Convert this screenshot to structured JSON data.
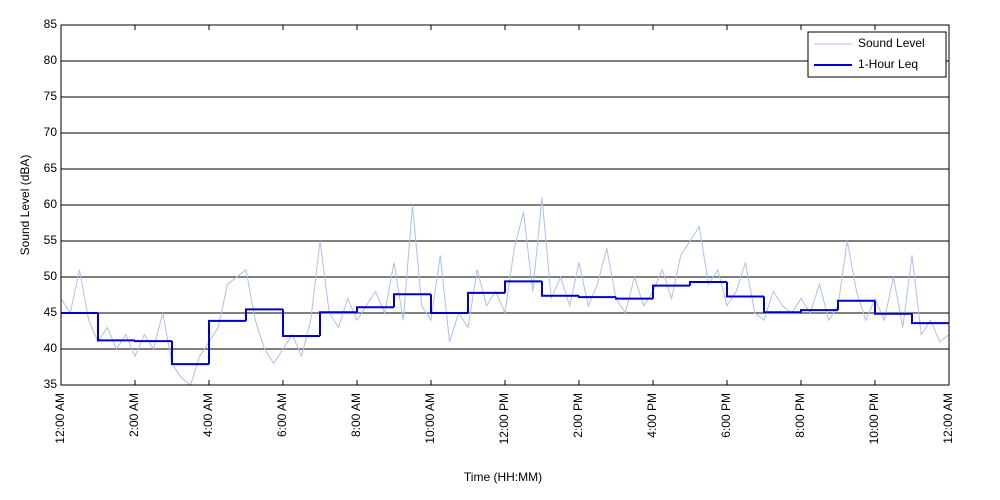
{
  "chart_data": {
    "type": "line",
    "x_label": "Time (HH:MM)",
    "y_label": "Sound Level (dBA)",
    "xlim": [
      0,
      24
    ],
    "ylim": [
      35,
      85
    ],
    "yticks": [
      35,
      40,
      45,
      50,
      55,
      60,
      65,
      70,
      75,
      80,
      85
    ],
    "xticks": [
      {
        "value": 0,
        "label": "12:00 AM"
      },
      {
        "value": 2,
        "label": "2:00 AM"
      },
      {
        "value": 4,
        "label": "4:00 AM"
      },
      {
        "value": 6,
        "label": "6:00 AM"
      },
      {
        "value": 8,
        "label": "8:00 AM"
      },
      {
        "value": 10,
        "label": "10:00 AM"
      },
      {
        "value": 12,
        "label": "12:00 PM"
      },
      {
        "value": 14,
        "label": "2:00 PM"
      },
      {
        "value": 16,
        "label": "4:00 PM"
      },
      {
        "value": 18,
        "label": "6:00 PM"
      },
      {
        "value": 20,
        "label": "8:00 PM"
      },
      {
        "value": 22,
        "label": "10:00 PM"
      },
      {
        "value": 24,
        "label": "12:00 AM"
      }
    ],
    "grid": true,
    "legend": "upper right",
    "series": [
      {
        "name": "Sound Level",
        "color": "#a9c1ef",
        "style": "line",
        "x": [
          0,
          0.25,
          0.5,
          0.75,
          1,
          1.25,
          1.5,
          1.75,
          2,
          2.25,
          2.5,
          2.75,
          3,
          3.25,
          3.5,
          3.75,
          4,
          4.25,
          4.5,
          4.75,
          5,
          5.25,
          5.5,
          5.75,
          6,
          6.25,
          6.5,
          6.75,
          7,
          7.25,
          7.5,
          7.75,
          8,
          8.25,
          8.5,
          8.75,
          9,
          9.25,
          9.5,
          9.75,
          10,
          10.25,
          10.5,
          10.75,
          11,
          11.25,
          11.5,
          11.75,
          12,
          12.25,
          12.5,
          12.75,
          13,
          13.25,
          13.5,
          13.75,
          14,
          14.25,
          14.5,
          14.75,
          15,
          15.25,
          15.5,
          15.75,
          16,
          16.25,
          16.5,
          16.75,
          17,
          17.25,
          17.5,
          17.75,
          18,
          18.25,
          18.5,
          18.75,
          19,
          19.25,
          19.5,
          19.75,
          20,
          20.25,
          20.5,
          20.75,
          21,
          21.25,
          21.5,
          21.75,
          22,
          22.25,
          22.5,
          22.75,
          23,
          23.25,
          23.5,
          23.75,
          24
        ],
        "values": [
          47,
          45,
          51,
          44,
          41,
          43,
          40,
          42,
          39,
          42,
          40,
          45,
          38,
          36,
          35,
          39,
          41,
          43,
          49,
          50,
          51,
          44,
          40,
          38,
          40,
          42,
          39,
          44,
          55,
          45,
          43,
          47,
          44,
          46,
          48,
          45,
          52,
          44,
          60,
          46,
          44,
          53,
          41,
          45,
          43,
          51,
          46,
          48,
          45,
          54,
          59,
          48,
          61,
          47,
          50,
          46,
          52,
          46,
          49,
          54,
          47,
          45,
          50,
          46,
          48,
          51,
          47,
          53,
          55,
          57,
          49,
          51,
          46,
          48,
          52,
          45,
          44,
          48,
          46,
          45,
          47,
          45,
          49,
          44,
          46,
          55,
          48,
          44,
          47,
          44,
          50,
          43,
          53,
          42,
          44,
          41,
          42
        ]
      },
      {
        "name": "1-Hour Leq",
        "color": "#0000cc",
        "style": "steps",
        "x": [
          0,
          1,
          2,
          3,
          4,
          5,
          6,
          7,
          8,
          9,
          10,
          11,
          12,
          13,
          14,
          15,
          16,
          17,
          18,
          19,
          20,
          21,
          22,
          23
        ],
        "values": [
          45,
          41.2,
          41.1,
          37.9,
          43.9,
          45.5,
          41.8,
          45.1,
          45.8,
          47.6,
          45,
          47.8,
          49.4,
          47.4,
          47.2,
          47,
          48.8,
          49.3,
          47.3,
          45.1,
          45.4,
          46.7,
          44.9,
          43.6
        ]
      }
    ]
  }
}
